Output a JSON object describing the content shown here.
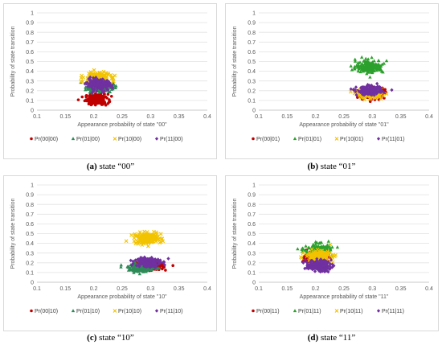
{
  "figure": {
    "captions": [
      {
        "label": "(a)",
        "text": "state “00”"
      },
      {
        "label": "(b)",
        "text": "state “01”"
      },
      {
        "label": "(c)",
        "text": "state “10”"
      },
      {
        "label": "(d)",
        "text": "state “11”"
      }
    ]
  },
  "chart_data": [
    {
      "type": "scatter",
      "title": "",
      "xlabel": "Appearance probability of state \"00\"",
      "ylabel": "Probability of state transition",
      "xlim": [
        0.1,
        0.4
      ],
      "ylim": [
        0,
        1
      ],
      "xticks": [
        "0.1",
        "0.15",
        "0.2",
        "0.25",
        "0.3",
        "0.35",
        "0.4"
      ],
      "yticks": [
        "0",
        "0.1",
        "0.2",
        "0.3",
        "0.4",
        "0.5",
        "0.6",
        "0.7",
        "0.8",
        "0.9",
        "1"
      ],
      "grid": "horizontal",
      "legend_position": "bottom",
      "series": [
        {
          "name": "Pr(00|00)",
          "color": "#c00000",
          "marker": "circle",
          "x_center": 0.205,
          "x_spread": 0.018,
          "y_center": 0.11,
          "y_spread": 0.05
        },
        {
          "name": "Pr(01|00)",
          "color": "#2e8b57",
          "marker": "triangle",
          "x_center": 0.21,
          "x_spread": 0.022,
          "y_center": 0.24,
          "y_spread": 0.05
        },
        {
          "name": "Pr(10|00)",
          "color": "#f2c300",
          "marker": "x",
          "x_center": 0.205,
          "x_spread": 0.02,
          "y_center": 0.33,
          "y_spread": 0.05
        },
        {
          "name": "Pr(11|00)",
          "color": "#7030a0",
          "marker": "diamond",
          "x_center": 0.21,
          "x_spread": 0.02,
          "y_center": 0.26,
          "y_spread": 0.05
        }
      ]
    },
    {
      "type": "scatter",
      "title": "",
      "xlabel": "Appearance probability of state \"01\"",
      "ylabel": "Probability of state transition",
      "xlim": [
        0.1,
        0.4
      ],
      "ylim": [
        0,
        1
      ],
      "xticks": [
        "0.1",
        "0.15",
        "0.2",
        "0.25",
        "0.3",
        "0.35",
        "0.4"
      ],
      "yticks": [
        "0",
        "0.1",
        "0.2",
        "0.3",
        "0.4",
        "0.5",
        "0.6",
        "0.7",
        "0.8",
        "0.9",
        "1"
      ],
      "grid": "horizontal",
      "legend_position": "bottom",
      "series": [
        {
          "name": "Pr(00|01)",
          "color": "#c00000",
          "marker": "circle",
          "x_center": 0.3,
          "x_spread": 0.02,
          "y_center": 0.18,
          "y_spread": 0.05
        },
        {
          "name": "Pr(01|01)",
          "color": "#2ca02c",
          "marker": "triangle",
          "x_center": 0.295,
          "x_spread": 0.022,
          "y_center": 0.45,
          "y_spread": 0.06
        },
        {
          "name": "Pr(10|01)",
          "color": "#f2c300",
          "marker": "x",
          "x_center": 0.295,
          "x_spread": 0.02,
          "y_center": 0.17,
          "y_spread": 0.04
        },
        {
          "name": "Pr(11|01)",
          "color": "#7030a0",
          "marker": "diamond",
          "x_center": 0.295,
          "x_spread": 0.02,
          "y_center": 0.2,
          "y_spread": 0.04
        }
      ]
    },
    {
      "type": "scatter",
      "title": "",
      "xlabel": "Appearance probability of state \"10\"",
      "ylabel": "Probability of state transition",
      "xlim": [
        0.1,
        0.4
      ],
      "ylim": [
        0,
        1
      ],
      "xticks": [
        "0.1",
        "0.15",
        "0.2",
        "0.25",
        "0.3",
        "0.35",
        "0.4"
      ],
      "yticks": [
        "0",
        "0.1",
        "0.2",
        "0.3",
        "0.4",
        "0.5",
        "0.6",
        "0.7",
        "0.8",
        "0.9",
        "1"
      ],
      "grid": "horizontal",
      "legend_position": "bottom",
      "series": [
        {
          "name": "Pr(00|10)",
          "color": "#c00000",
          "marker": "circle",
          "x_center": 0.3,
          "x_spread": 0.02,
          "y_center": 0.17,
          "y_spread": 0.04
        },
        {
          "name": "Pr(01|10)",
          "color": "#2e8b57",
          "marker": "triangle",
          "x_center": 0.285,
          "x_spread": 0.022,
          "y_center": 0.15,
          "y_spread": 0.04
        },
        {
          "name": "Pr(10|10)",
          "color": "#f2c300",
          "marker": "x",
          "x_center": 0.295,
          "x_spread": 0.022,
          "y_center": 0.45,
          "y_spread": 0.05
        },
        {
          "name": "Pr(11|10)",
          "color": "#7030a0",
          "marker": "diamond",
          "x_center": 0.295,
          "x_spread": 0.02,
          "y_center": 0.21,
          "y_spread": 0.05
        }
      ]
    },
    {
      "type": "scatter",
      "title": "",
      "xlabel": "Appearance probability of state \"11\"",
      "ylabel": "Probability of state transition",
      "xlim": [
        0.1,
        0.4
      ],
      "ylim": [
        0,
        1
      ],
      "xticks": [
        "0.1",
        "0.15",
        "0.2",
        "0.25",
        "0.3",
        "0.35",
        "0.4"
      ],
      "yticks": [
        "0",
        "0.1",
        "0.2",
        "0.3",
        "0.4",
        "0.5",
        "0.6",
        "0.7",
        "0.8",
        "0.9",
        "1"
      ],
      "grid": "horizontal",
      "legend_position": "bottom",
      "series": [
        {
          "name": "Pr(00|11)",
          "color": "#c00000",
          "marker": "circle",
          "x_center": 0.2,
          "x_spread": 0.018,
          "y_center": 0.25,
          "y_spread": 0.05
        },
        {
          "name": "Pr(01|11)",
          "color": "#2ca02c",
          "marker": "triangle",
          "x_center": 0.205,
          "x_spread": 0.022,
          "y_center": 0.33,
          "y_spread": 0.06
        },
        {
          "name": "Pr(10|11)",
          "color": "#f2c300",
          "marker": "x",
          "x_center": 0.205,
          "x_spread": 0.02,
          "y_center": 0.27,
          "y_spread": 0.05
        },
        {
          "name": "Pr(11|11)",
          "color": "#7030a0",
          "marker": "diamond",
          "x_center": 0.205,
          "x_spread": 0.02,
          "y_center": 0.17,
          "y_spread": 0.05
        }
      ]
    }
  ]
}
